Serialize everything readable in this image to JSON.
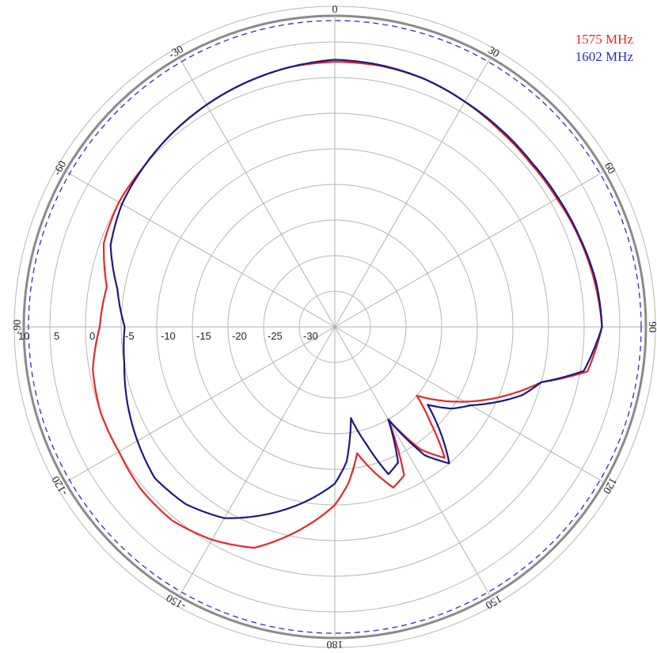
{
  "chart_data": {
    "type": "polar-line",
    "title": "",
    "angle_unit": "deg",
    "radial_unit": "dB",
    "r_min": -35,
    "r_max": 10,
    "r_ring_values": [
      -30,
      -25,
      -20,
      -15,
      -10,
      -5,
      0,
      5,
      10
    ],
    "radial_tick_labels": [
      "10",
      "5",
      "0",
      "-5",
      "-10",
      "-15",
      "-20",
      "-25",
      "-30"
    ],
    "reference_ring": {
      "value": 8,
      "style": "dashed",
      "color": "#2b2bd0"
    },
    "angle_tick_labels": [
      {
        "angle": 0,
        "label": "0"
      },
      {
        "angle": 30,
        "label": "30"
      },
      {
        "angle": 60,
        "label": "60"
      },
      {
        "angle": 90,
        "label": "90"
      },
      {
        "angle": 120,
        "label": "120"
      },
      {
        "angle": 150,
        "label": "150"
      },
      {
        "angle": 180,
        "label": "180"
      },
      {
        "angle": -150,
        "label": "-150"
      },
      {
        "angle": -120,
        "label": "-120"
      },
      {
        "angle": -90,
        "label": "-90"
      },
      {
        "angle": -60,
        "label": "-60"
      },
      {
        "angle": -30,
        "label": "-30"
      }
    ],
    "legend_position": "top-right",
    "series": [
      {
        "name": "1575 MHz",
        "color": "#e8262a",
        "angles": [
          0,
          10,
          20,
          30,
          40,
          50,
          60,
          70,
          80,
          90,
          100,
          105,
          110,
          115,
          120,
          125,
          130,
          135,
          140,
          145,
          150,
          155,
          160,
          165,
          170,
          175,
          180,
          190,
          200,
          210,
          220,
          230,
          240,
          250,
          260,
          270,
          280,
          290,
          300,
          310,
          320,
          330,
          340,
          350,
          360
        ],
        "values": [
          2.2,
          2.2,
          2.0,
          1.5,
          1.0,
          0.8,
          1.0,
          1.5,
          2.0,
          2.5,
          1.0,
          -5.0,
          -8.0,
          -11.0,
          -14.0,
          -17.0,
          -20.0,
          -16.0,
          -11.0,
          -14.0,
          -20.0,
          -12.0,
          -11.0,
          -14.0,
          -17.0,
          -13.0,
          -10.0,
          -6.0,
          -2.0,
          -0.5,
          0.5,
          0.5,
          0.0,
          0.0,
          -0.5,
          -2.0,
          -2.5,
          -0.5,
          0.0,
          0.0,
          0.5,
          1.0,
          1.5,
          2.0,
          2.2
        ]
      },
      {
        "name": "1602 MHz",
        "color": "#1a1a80",
        "angles": [
          0,
          10,
          20,
          30,
          40,
          50,
          60,
          70,
          80,
          90,
          100,
          105,
          110,
          115,
          120,
          125,
          130,
          135,
          140,
          145,
          150,
          155,
          160,
          165,
          170,
          175,
          180,
          190,
          200,
          210,
          220,
          230,
          240,
          250,
          260,
          270,
          280,
          290,
          300,
          310,
          320,
          330,
          340,
          350,
          360
        ],
        "values": [
          2.5,
          2.3,
          2.0,
          1.5,
          1.2,
          1.0,
          1.2,
          1.6,
          2.2,
          2.5,
          0.5,
          -5.0,
          -7.0,
          -10.0,
          -13.0,
          -15.0,
          -18.0,
          -14.0,
          -10.0,
          -13.0,
          -20.0,
          -14.0,
          -13.0,
          -18.0,
          -22.0,
          -16.0,
          -13.0,
          -10.0,
          -7.0,
          -4.0,
          -2.5,
          -2.0,
          -3.0,
          -4.0,
          -5.0,
          -5.5,
          -4.0,
          -1.5,
          -0.5,
          0.0,
          0.5,
          1.0,
          1.5,
          2.0,
          2.5
        ]
      }
    ]
  }
}
